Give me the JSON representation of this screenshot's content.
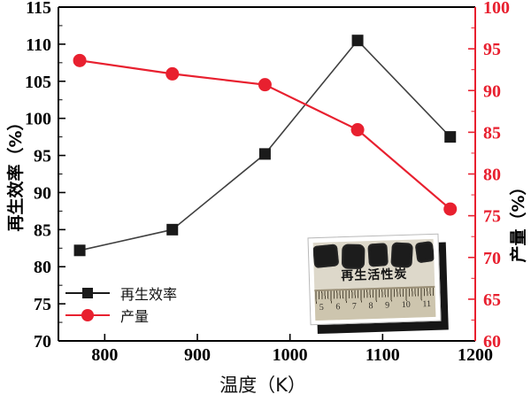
{
  "chart_data": {
    "type": "line",
    "x": [
      773,
      873,
      973,
      1073,
      1173
    ],
    "series": [
      {
        "name": "再生效率",
        "axis": "left",
        "marker": "square",
        "color": "#1a1a1a",
        "line_color": "#404040",
        "values": [
          82.2,
          85.0,
          95.2,
          110.5,
          97.5
        ]
      },
      {
        "name": "产量",
        "axis": "right",
        "marker": "circle",
        "color": "#e8202f",
        "line_color": "#e8202f",
        "values": [
          93.6,
          92.0,
          90.7,
          85.3,
          75.8
        ]
      }
    ],
    "title": "",
    "xlabel": "温度（K）",
    "ylabel_left": "再生效率（%）",
    "ylabel_right": "产量（%）",
    "xlim": [
      750,
      1200
    ],
    "ylim_left": [
      70,
      115
    ],
    "ylim_right": [
      60,
      100
    ],
    "x_ticks": [
      800,
      900,
      1000,
      1100,
      1200
    ],
    "left_ticks": [
      70,
      75,
      80,
      85,
      90,
      95,
      100,
      105,
      110,
      115
    ],
    "right_ticks": [
      60,
      65,
      70,
      75,
      80,
      85,
      90,
      95,
      100
    ],
    "minor_tick_step": 2.5,
    "grid": false,
    "legend_position": "lower-left",
    "legend": [
      {
        "label": "再生效率",
        "marker": "square",
        "color": "#1a1a1a"
      },
      {
        "label": "产量",
        "marker": "circle",
        "color": "#e8202f"
      }
    ],
    "left_axis_color": "#000000",
    "right_axis_color": "#e8202f"
  },
  "inset": {
    "caption": "再生活性炭",
    "ruler_numbers": [
      "5",
      "6",
      "7",
      "8",
      "9",
      "10",
      "11"
    ],
    "carbon_piece_count": 5
  }
}
